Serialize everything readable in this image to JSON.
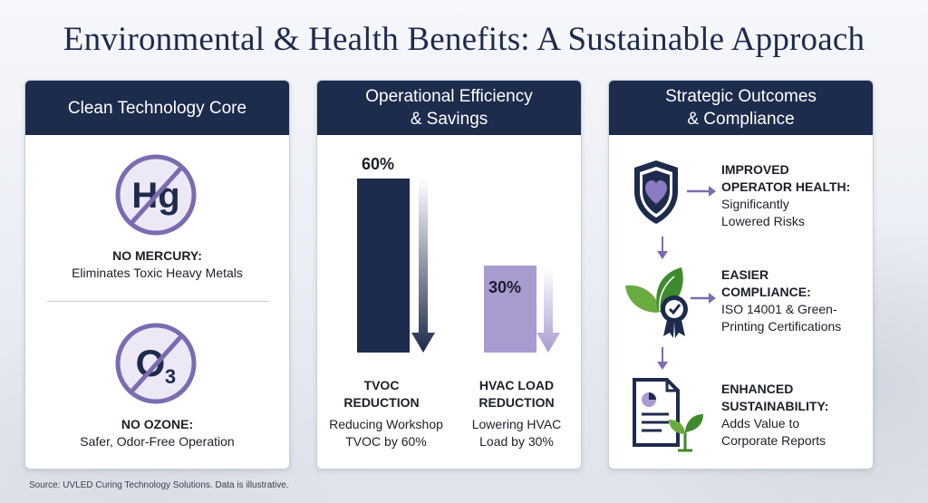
{
  "title": "Environmental & Health Benefits: A Sustainable Approach",
  "panels": {
    "clean": {
      "header": [
        "Clean Technology Core"
      ],
      "items": [
        {
          "symbol": "Hg",
          "label": "NO MERCURY:",
          "desc": "Eliminates Toxic Heavy Metals",
          "icon": "no-mercury-icon"
        },
        {
          "symbol": "O",
          "sub": "3",
          "label": "NO OZONE:",
          "desc": "Safer, Odor-Free Operation",
          "icon": "no-ozone-icon"
        }
      ]
    },
    "efficiency": {
      "header": [
        "Operational Efficiency",
        "& Savings"
      ]
    },
    "outcomes": {
      "header": [
        "Strategic Outcomes",
        "& Compliance"
      ],
      "items": [
        {
          "title": [
            "IMPROVED",
            "OPERATOR HEALTH:"
          ],
          "desc": [
            "Significantly",
            "Lowered Risks"
          ],
          "icon": "shield-heart-icon"
        },
        {
          "title": [
            "EASIER",
            "COMPLIANCE:"
          ],
          "desc": [
            "ISO 14001 & Green-",
            "Printing Certifications"
          ],
          "icon": "leaf-badge-icon"
        },
        {
          "title": [
            "ENHANCED",
            "SUSTAINABILITY:"
          ],
          "desc": [
            "Adds Value to",
            "Corporate Reports"
          ],
          "icon": "report-plant-icon"
        }
      ]
    }
  },
  "chart_data": {
    "type": "bar",
    "categories": [
      "TVOC REDUCTION",
      "HVAC LOAD REDUCTION"
    ],
    "values": [
      60,
      30
    ],
    "value_labels": [
      "60%",
      "30%"
    ],
    "unit": "%",
    "ylim": [
      0,
      60
    ],
    "colors": [
      "#1d2b4c",
      "#a89bd0"
    ],
    "descriptions": [
      [
        "Reducing Workshop",
        "TVOC by 60%"
      ],
      [
        "Lowering HVAC",
        "Load by 30%"
      ]
    ],
    "title_lines": [
      [
        "TVOC",
        "REDUCTION"
      ],
      [
        "HVAC LOAD",
        "REDUCTION"
      ]
    ]
  },
  "colors": {
    "navy": "#1d2b4c",
    "purple": "#7b6bb0",
    "light_purple": "#a89bd0",
    "green": "#5a9e3a"
  },
  "source": "Source: UVLED Curing Technology Solutions. Data is illustrative."
}
